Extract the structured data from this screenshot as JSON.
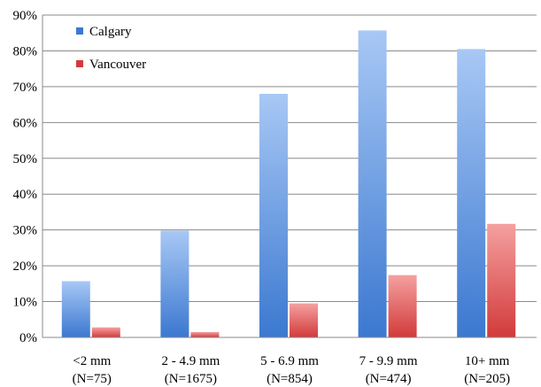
{
  "chart_data": {
    "type": "bar",
    "categories": [
      [
        "<2 mm",
        "(N=75)"
      ],
      [
        "2 - 4.9 mm",
        "(N=1675)"
      ],
      [
        "5 - 6.9 mm",
        "(N=854)"
      ],
      [
        "7 - 9.9 mm",
        "(N=474)"
      ],
      [
        "10+ mm",
        "(N=205)"
      ]
    ],
    "series": [
      {
        "name": "Calgary",
        "values": [
          15.7,
          29.8,
          68.0,
          85.7,
          80.5
        ],
        "color_top": "#a8c8f5",
        "color_bottom": "#3b78d0"
      },
      {
        "name": "Vancouver",
        "values": [
          2.8,
          1.5,
          9.5,
          17.4,
          31.7
        ],
        "color_top": "#f5a0a0",
        "color_bottom": "#d23a3a"
      }
    ],
    "y_ticks": [
      "0%",
      "10%",
      "20%",
      "30%",
      "40%",
      "50%",
      "60%",
      "70%",
      "80%",
      "90%"
    ],
    "ylim": [
      0,
      90
    ],
    "grid": true,
    "legend_position": "top-left",
    "title": "",
    "xlabel": "",
    "ylabel": ""
  }
}
